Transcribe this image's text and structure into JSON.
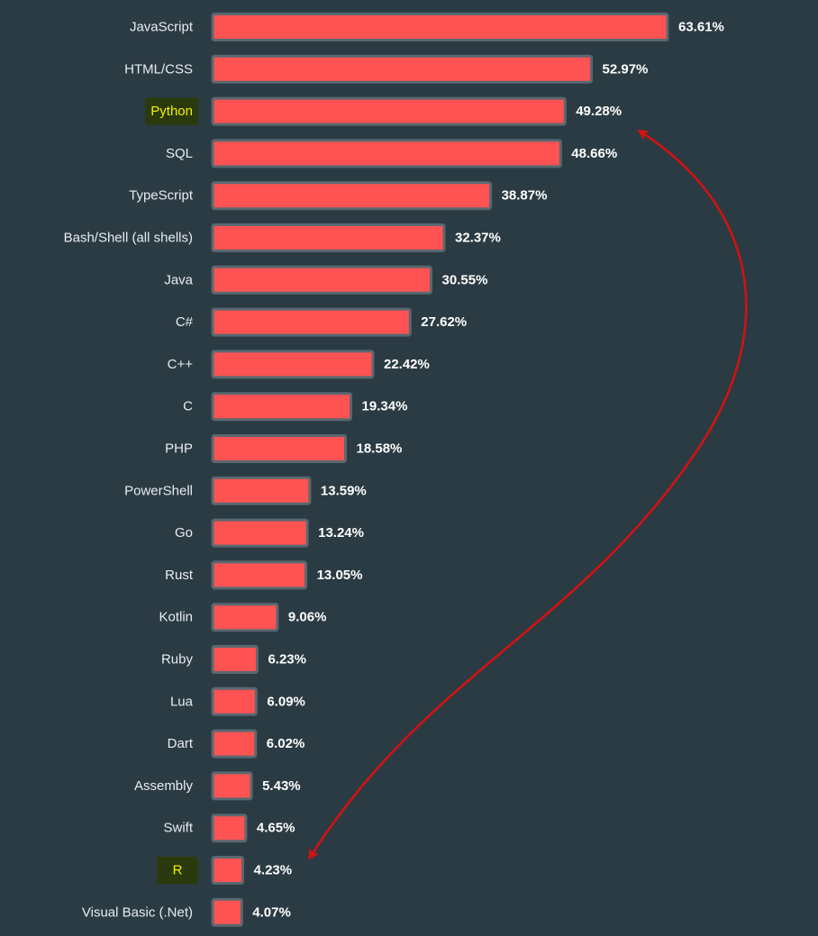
{
  "chart_data": {
    "type": "bar",
    "orientation": "horizontal",
    "title": "",
    "xlabel": "",
    "ylabel": "",
    "xlim": [
      0,
      63.61
    ],
    "grid": false,
    "legend": "none",
    "categories": [
      "JavaScript",
      "HTML/CSS",
      "Python",
      "SQL",
      "TypeScript",
      "Bash/Shell (all shells)",
      "Java",
      "C#",
      "C++",
      "C",
      "PHP",
      "PowerShell",
      "Go",
      "Rust",
      "Kotlin",
      "Ruby",
      "Lua",
      "Dart",
      "Assembly",
      "Swift",
      "R",
      "Visual Basic (.Net)"
    ],
    "values": [
      63.61,
      52.97,
      49.28,
      48.66,
      38.87,
      32.37,
      30.55,
      27.62,
      22.42,
      19.34,
      18.58,
      13.59,
      13.24,
      13.05,
      9.06,
      6.23,
      6.09,
      6.02,
      5.43,
      4.65,
      4.23,
      4.07
    ],
    "value_labels": [
      "63.61%",
      "52.97%",
      "49.28%",
      "48.66%",
      "38.87%",
      "32.37%",
      "30.55%",
      "27.62%",
      "22.42%",
      "19.34%",
      "18.58%",
      "13.59%",
      "13.24%",
      "13.05%",
      "9.06%",
      "6.23%",
      "6.09%",
      "6.02%",
      "5.43%",
      "4.65%",
      "4.23%",
      "4.07%"
    ],
    "highlighted": [
      "Python",
      "R"
    ],
    "annotations": [
      {
        "type": "double-arrow",
        "from": "Python",
        "to": "R",
        "color": "#d81010"
      }
    ]
  },
  "colors": {
    "background": "#2b3b43",
    "bar_fill": "#ff5353",
    "bar_stroke": "#5a6870",
    "label_text": "#e8edf0",
    "value_text": "#ffffff",
    "highlight_bg": "#2b3a0c",
    "highlight_text": "#f4f000",
    "arrow": "#d81010"
  }
}
